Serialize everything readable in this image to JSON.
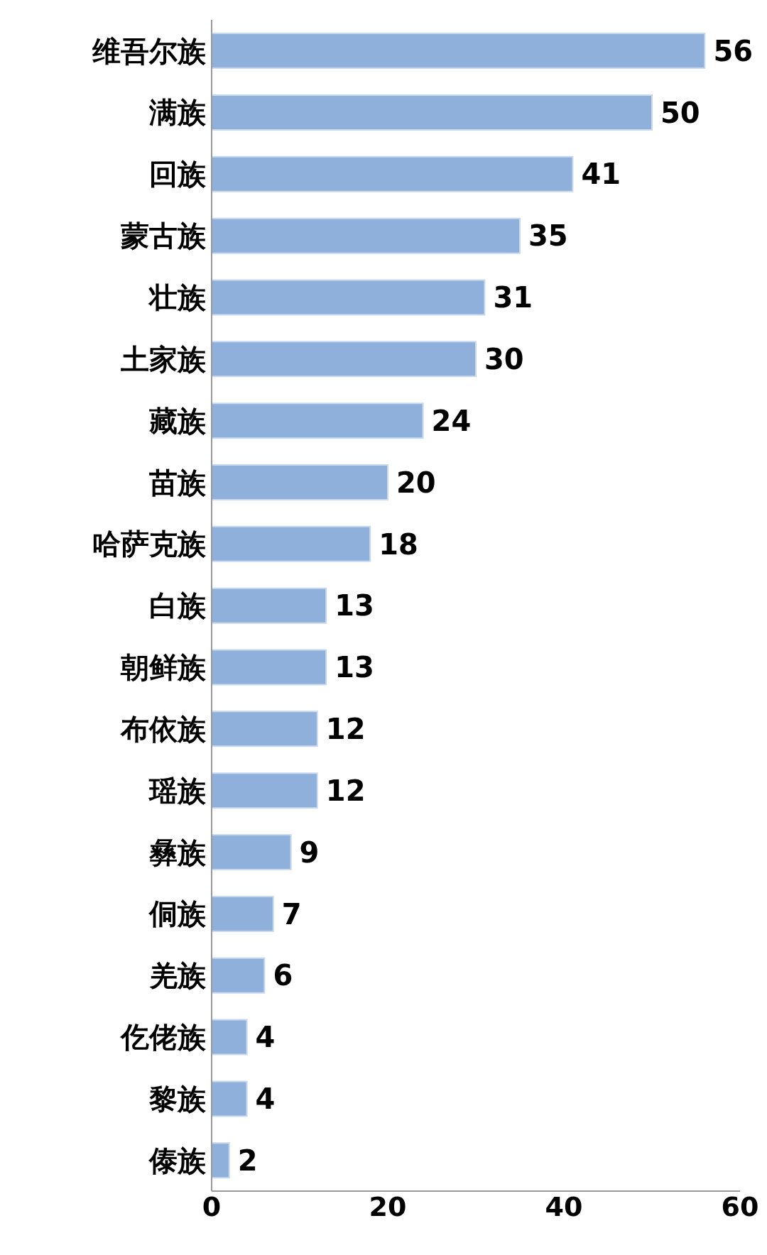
{
  "chart_data": {
    "type": "bar",
    "orientation": "horizontal",
    "categories": [
      "维吾尔族",
      "满族",
      "回族",
      "蒙古族",
      "壮族",
      "土家族",
      "藏族",
      "苗族",
      "哈萨克族",
      "白族",
      "朝鲜族",
      "布依族",
      "瑶族",
      "彝族",
      "侗族",
      "羌族",
      "仡佬族",
      "黎族",
      "傣族"
    ],
    "values": [
      56,
      50,
      41,
      35,
      31,
      30,
      24,
      20,
      18,
      13,
      13,
      12,
      12,
      9,
      7,
      6,
      4,
      4,
      2
    ],
    "color": "#8eb0db",
    "xlim": [
      0,
      60
    ],
    "xticks": [
      0,
      20,
      40,
      60
    ],
    "data_labels": true
  }
}
